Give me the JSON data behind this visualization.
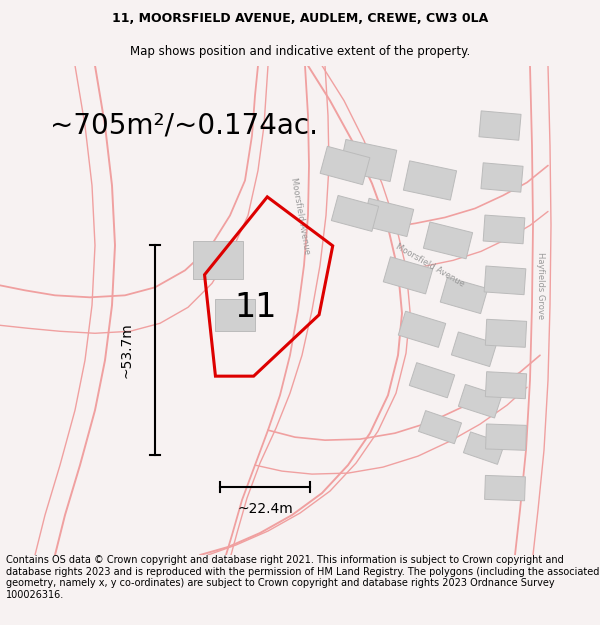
{
  "title_line1": "11, MOORSFIELD AVENUE, AUDLEM, CREWE, CW3 0LA",
  "title_line2": "Map shows position and indicative extent of the property.",
  "area_text": "~705m²/~0.174ac.",
  "width_text": "~22.4m",
  "height_text": "~53.7m",
  "plot_number": "11",
  "footer_text": "Contains OS data © Crown copyright and database right 2021. This information is subject to Crown copyright and database rights 2023 and is reproduced with the permission of HM Land Registry. The polygons (including the associated geometry, namely x, y co-ordinates) are subject to Crown copyright and database rights 2023 Ordnance Survey 100026316.",
  "bg_color": "#f7f2f2",
  "road_color": "#f0a0a0",
  "building_color": "#d0d0d0",
  "building_edge": "#bbbbbb",
  "plot_color": "#dd0000",
  "title_fontsize": 9,
  "area_fontsize": 20,
  "dim_fontsize": 10,
  "number_fontsize": 24,
  "footer_fontsize": 7,
  "road_label_fontsize": 6,
  "road_label_color": "#999999"
}
